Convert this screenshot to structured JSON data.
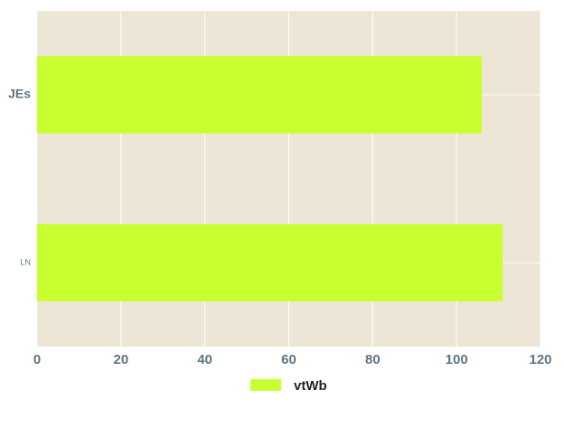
{
  "chart_data": {
    "type": "bar",
    "orientation": "horizontal",
    "categories": [
      "JEs",
      "LN"
    ],
    "series": [
      {
        "name": "vtWb",
        "values": [
          106,
          111
        ]
      }
    ],
    "xlim": [
      0,
      120
    ],
    "xticks": [
      "0",
      "20",
      "40",
      "60",
      "80",
      "100",
      "120"
    ],
    "title": "",
    "xlabel": "",
    "ylabel": "",
    "grid": true,
    "legend": "bottom-center",
    "colors": {
      "plot_background": "#ede6d6",
      "bar": "#c8ff2e",
      "grid": "#ffffff",
      "tick_text": "#5e7580",
      "legend_text": "#222222"
    }
  }
}
